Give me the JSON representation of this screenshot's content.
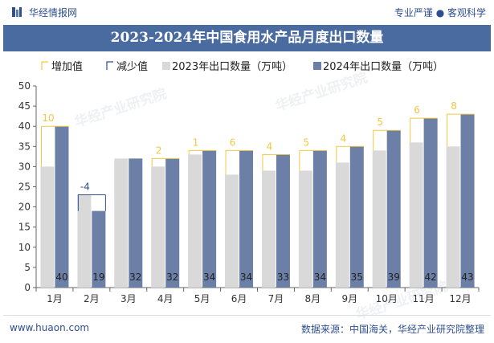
{
  "header": {
    "brand": "华经情报网",
    "tagline": "专业严谨 ● 客观科学"
  },
  "footer": {
    "website": "www.huaon.com",
    "source": "数据来源：中国海关，华经产业研究院整理"
  },
  "watermark": "华经产业研究院",
  "colors": {
    "increase": "#f2c744",
    "decrease": "#2f4f8f",
    "series2023": "#d9d9d9",
    "series2024": "#6c7fa6",
    "title_band": "#4a6ba0"
  },
  "chart_data": {
    "type": "bar",
    "title": "2023-2024年中国食用水产品月度出口数量",
    "categories": [
      "1月",
      "2月",
      "3月",
      "4月",
      "5月",
      "6月",
      "7月",
      "8月",
      "9月",
      "10月",
      "11月",
      "12月"
    ],
    "series": [
      {
        "name": "2023年出口数量（万吨）",
        "values": [
          30,
          23,
          32,
          30,
          33,
          28,
          29,
          29,
          31,
          34,
          36,
          35
        ]
      },
      {
        "name": "2024年出口数量（万吨）",
        "values": [
          40,
          19,
          32,
          32,
          34,
          34,
          33,
          34,
          35,
          39,
          42,
          43
        ]
      }
    ],
    "difference": [
      10,
      -4,
      0,
      2,
      1,
      6,
      4,
      5,
      4,
      5,
      6,
      8
    ],
    "difference_legend": {
      "increase": "增加值",
      "decrease": "减少值"
    },
    "ylim": [
      0,
      50
    ],
    "yticks": [
      0,
      5,
      10,
      15,
      20,
      25,
      30,
      35,
      40,
      45,
      50
    ],
    "legend_position": "top",
    "grid": false
  }
}
